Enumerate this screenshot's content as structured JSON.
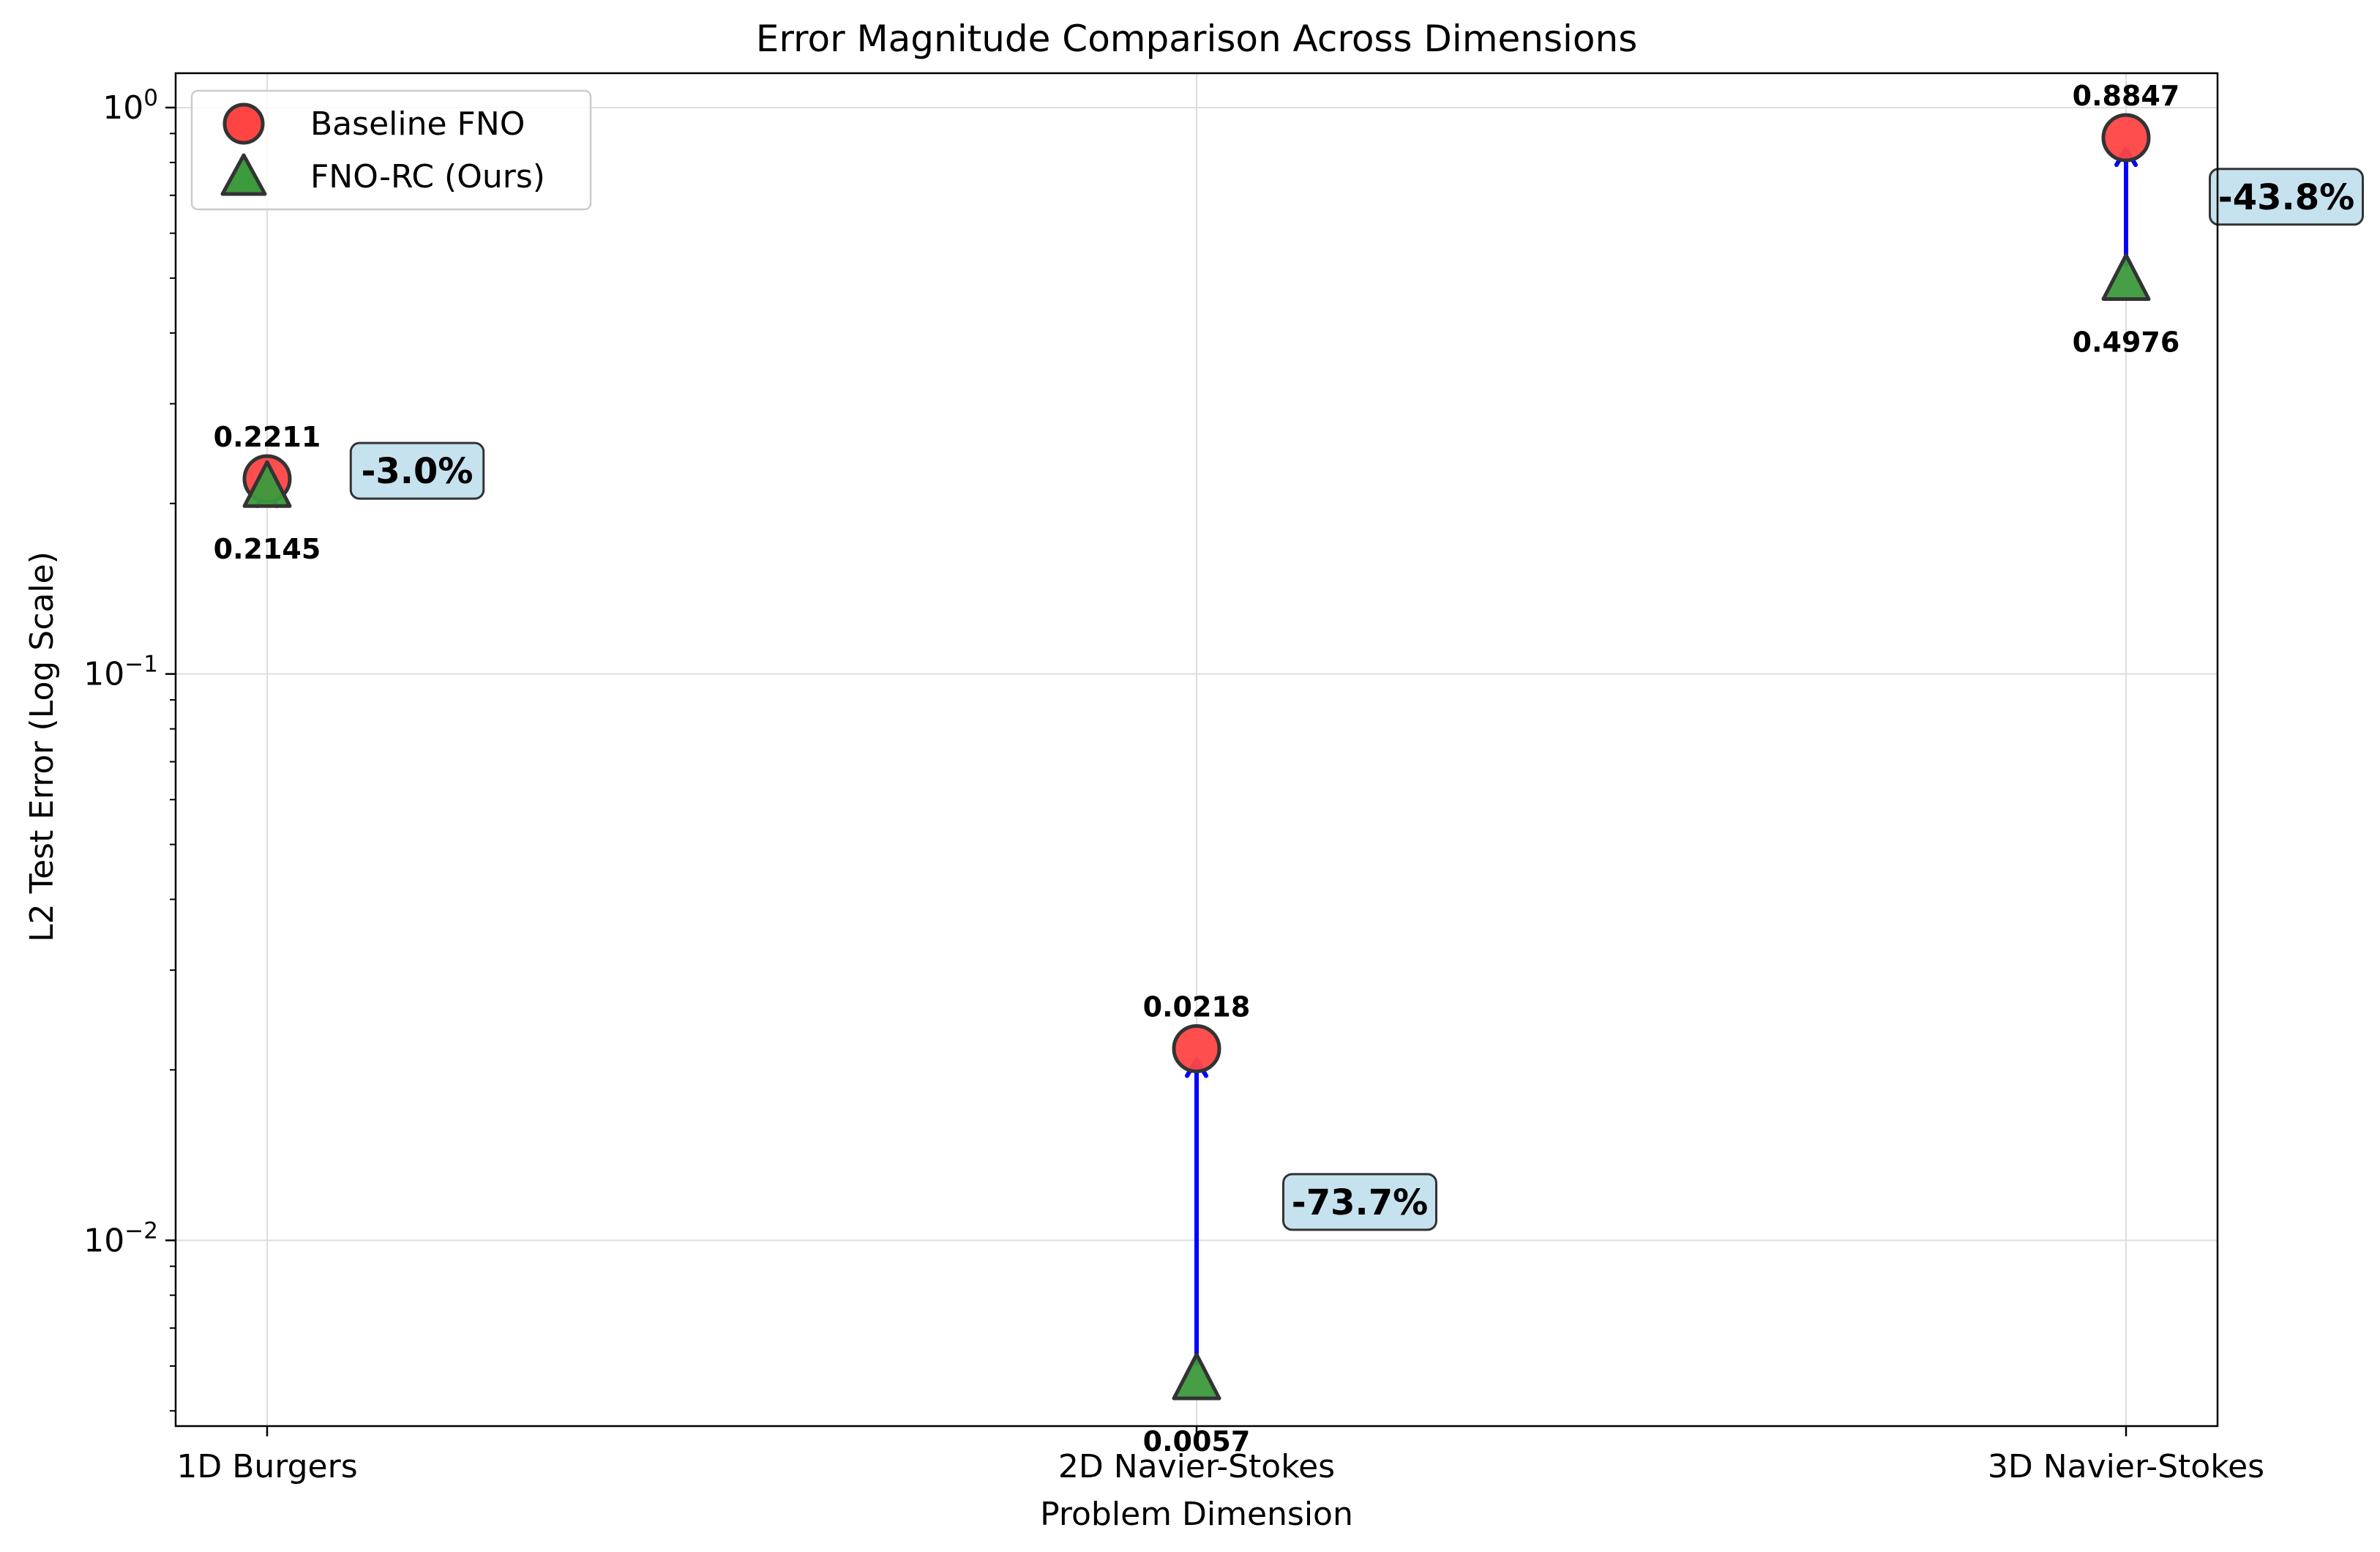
{
  "chart_data": {
    "type": "scatter",
    "title": "Error Magnitude Comparison Across Dimensions",
    "xlabel": "Problem Dimension",
    "ylabel": "L2 Test Error (Log Scale)",
    "y_scale": "log",
    "ylim": [
      0.0047,
      1.15
    ],
    "grid": true,
    "legend_placement": "top-left",
    "categories": [
      "1D Burgers",
      "2D Navier-Stokes",
      "3D Navier-Stokes"
    ],
    "y_ticks": [
      {
        "value": 1,
        "base": "10",
        "exp": "0"
      },
      {
        "value": 0.1,
        "base": "10",
        "exp": "−1"
      },
      {
        "value": 0.01,
        "base": "10",
        "exp": "−2"
      }
    ],
    "series": [
      {
        "name": "Baseline FNO",
        "marker": "circle",
        "color": "#ff4444",
        "values": [
          0.2211,
          0.0218,
          0.8847
        ],
        "labels": [
          "0.2211",
          "0.0218",
          "0.8847"
        ],
        "label_color": "#ff0000"
      },
      {
        "name": "FNO-RC (Ours)",
        "marker": "triangle",
        "color": "#3c9a3c",
        "values": [
          0.2145,
          0.0057,
          0.4976
        ],
        "labels": [
          "0.2145",
          "0.0057",
          "0.4976"
        ],
        "label_color": "#008000"
      }
    ],
    "annotations": [
      "-3.0%",
      "-73.7%",
      "-43.8%"
    ],
    "annotation_color": "#0000ff",
    "annotation_box_color": "#c5e2ee",
    "arrow_color": "#0000ff"
  }
}
